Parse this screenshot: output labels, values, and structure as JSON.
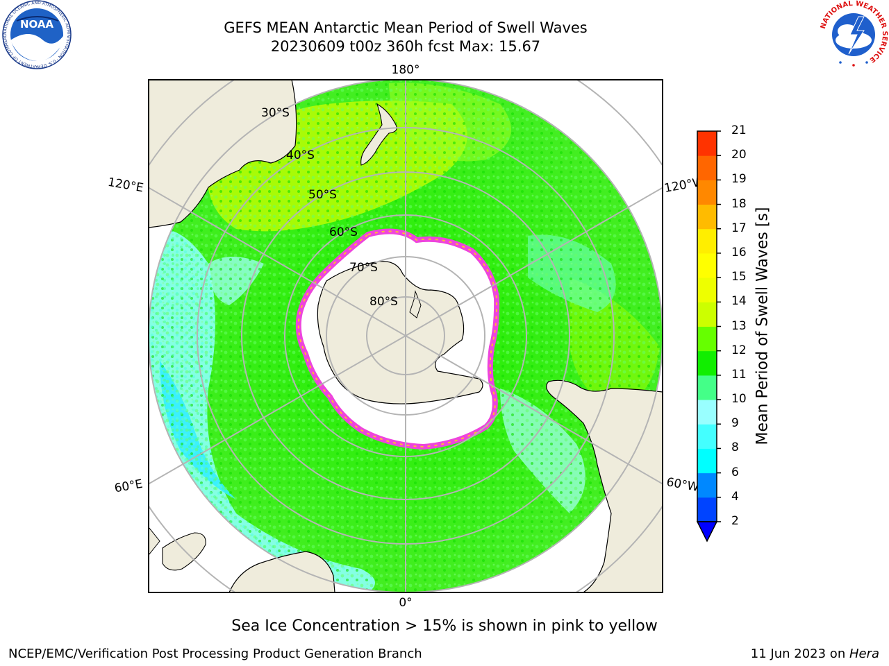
{
  "title": {
    "line1": "GEFS MEAN Antarctic Mean Period of Swell Waves",
    "line2": "20230609 t00z 360h fcst   Max: 15.67"
  },
  "map": {
    "projection": "south-polar-stereographic",
    "longitude_labels": {
      "top": "180°",
      "bottom": "0°",
      "upper_left": "120°E",
      "upper_right": "120°W",
      "lower_left": "60°E",
      "lower_right": "60°W"
    },
    "latitude_labels": [
      "30°S",
      "40°S",
      "50°S",
      "60°S",
      "70°S",
      "80°S"
    ],
    "colors": {
      "land": "#efecdc",
      "ocean_default": "#33ee00",
      "sea_ice_open": "#ffffff",
      "ice_edge_pink": "#ee44dd",
      "ice_edge_yellow": "#ffbb33",
      "grid": "#b4b4b4"
    }
  },
  "colorbar": {
    "title": "Mean Period of Swell Waves [s]",
    "ticks": [
      "2",
      "4",
      "6",
      "8",
      "9",
      "10",
      "11",
      "12",
      "13",
      "14",
      "15",
      "16",
      "17",
      "18",
      "19",
      "20",
      "21"
    ],
    "colors": [
      "#0044ff",
      "#0088ff",
      "#00ffff",
      "#44ffff",
      "#99ffff",
      "#44ff88",
      "#11ee00",
      "#66ff00",
      "#ccff00",
      "#eeff00",
      "#ffff00",
      "#ffee00",
      "#ffbb00",
      "#ff8800",
      "#ff6600",
      "#ff3300",
      "#ff0000"
    ],
    "extend_color": "#0000ff"
  },
  "ice_note": "Sea Ice Concentration > 15% is shown in pink to yellow",
  "footer": {
    "left": "NCEP/EMC/Verification Post Processing Product Generation Branch",
    "right_prefix": "11 Jun 2023 on ",
    "right_machine": "Hera"
  },
  "logos": {
    "noaa_text": "NOAA",
    "noaa_ring_text": "NATIONAL OCEANIC AND ATMOSPHERIC ADMINISTRATION · U.S. DEPARTMENT OF COMMERCE",
    "nws_ring_text": "NATIONAL WEATHER SERVICE"
  }
}
